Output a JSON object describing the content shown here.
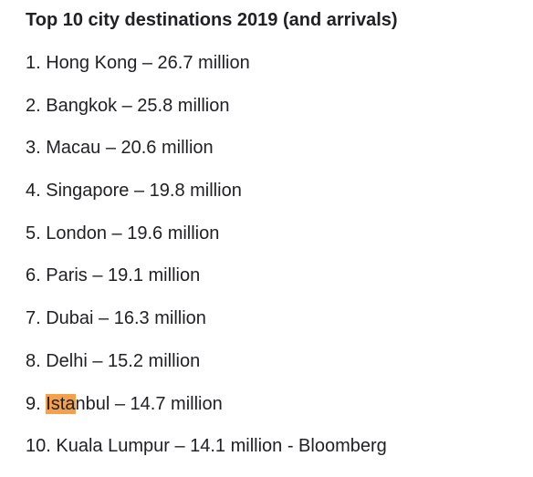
{
  "heading": "Top 10 city destinations 2019 (and arrivals)",
  "highlight_color": "#f5a04a",
  "items": [
    {
      "text": "1. Hong Kong – 26.7 million"
    },
    {
      "text": "2. Bangkok – 25.8 million"
    },
    {
      "text": "3. Macau – 20.6 million"
    },
    {
      "text": "4. Singapore – 19.8 million"
    },
    {
      "text": "5. London – 19.6 million"
    },
    {
      "text": "6. Paris – 19.1 million"
    },
    {
      "text": "7. Dubai – 16.3 million"
    },
    {
      "text": "8. Delhi – 15.2 million"
    },
    {
      "before": "9. ",
      "highlight": "Ista",
      "after": "nbul – 14.7 million"
    },
    {
      "text": "10. Kuala Lumpur – 14.1 million - Bloomberg"
    }
  ]
}
